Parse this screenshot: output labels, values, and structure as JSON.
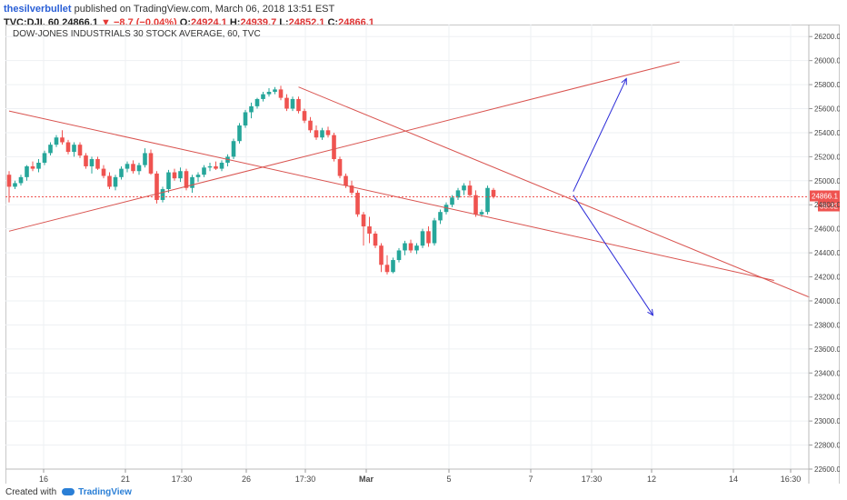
{
  "header": {
    "author": "thesilverbullet",
    "published_text": "published on TradingView.com, March 06, 2018 13:51 EST",
    "symbol": "TVC:DJI, 60",
    "last": "24866.1",
    "change": "−8.7 (−0.04%)",
    "open_label": "O:",
    "open": "24924.1",
    "high_label": "H:",
    "high": "24939.7",
    "low_label": "L:",
    "low": "24852.1",
    "close_label": "C:",
    "close": "24866.1"
  },
  "footer": {
    "created_with": "Created with",
    "brand": "TradingView"
  },
  "colors": {
    "up": "#26a69a",
    "down": "#ef5350",
    "trendline": "#d9534f",
    "arrow": "#2b2bd8",
    "price_label_bg": "#ef5350"
  },
  "chart_data": {
    "type": "candlestick",
    "title": "DOW-JONES INDUSTRIALS 30 STOCK AVERAGE, 60, TVC",
    "x_tick_labels": [
      "16",
      "21",
      "17:30",
      "26",
      "17:30",
      "Mar",
      "5",
      "7",
      "17:30",
      "12",
      "14",
      "16:30"
    ],
    "y_tick_labels": [
      "26200.0",
      "26000.0",
      "25800.0",
      "25600.0",
      "25400.0",
      "25200.0",
      "25000.0",
      "24800.0",
      "24600.0",
      "24400.0",
      "24200.0",
      "24000.0",
      "23800.0",
      "23600.0",
      "23400.0",
      "23200.0",
      "23000.0",
      "22800.0",
      "22600.0"
    ],
    "ylim": [
      22600,
      26300
    ],
    "grid": true,
    "last_price_label": "24866.1",
    "countdown_label": "38:32",
    "candles": [
      {
        "o": 25050,
        "h": 25080,
        "l": 24820,
        "c": 24950
      },
      {
        "o": 24950,
        "h": 25000,
        "l": 24930,
        "c": 24980
      },
      {
        "o": 24980,
        "h": 25050,
        "l": 24960,
        "c": 25030
      },
      {
        "o": 25030,
        "h": 25130,
        "l": 25000,
        "c": 25120
      },
      {
        "o": 25120,
        "h": 25160,
        "l": 25080,
        "c": 25100
      },
      {
        "o": 25100,
        "h": 25180,
        "l": 25070,
        "c": 25150
      },
      {
        "o": 25150,
        "h": 25250,
        "l": 25130,
        "c": 25230
      },
      {
        "o": 25230,
        "h": 25320,
        "l": 25210,
        "c": 25300
      },
      {
        "o": 25300,
        "h": 25380,
        "l": 25280,
        "c": 25360
      },
      {
        "o": 25360,
        "h": 25420,
        "l": 25300,
        "c": 25320
      },
      {
        "o": 25320,
        "h": 25340,
        "l": 25220,
        "c": 25240
      },
      {
        "o": 25240,
        "h": 25320,
        "l": 25200,
        "c": 25300
      },
      {
        "o": 25300,
        "h": 25320,
        "l": 25190,
        "c": 25210
      },
      {
        "o": 25210,
        "h": 25230,
        "l": 25100,
        "c": 25120
      },
      {
        "o": 25120,
        "h": 25200,
        "l": 25060,
        "c": 25180
      },
      {
        "o": 25180,
        "h": 25200,
        "l": 25090,
        "c": 25100
      },
      {
        "o": 25100,
        "h": 25130,
        "l": 25020,
        "c": 25040
      },
      {
        "o": 25040,
        "h": 25070,
        "l": 24930,
        "c": 24950
      },
      {
        "o": 24950,
        "h": 25050,
        "l": 24920,
        "c": 25030
      },
      {
        "o": 25030,
        "h": 25120,
        "l": 25010,
        "c": 25100
      },
      {
        "o": 25100,
        "h": 25160,
        "l": 25070,
        "c": 25140
      },
      {
        "o": 25140,
        "h": 25170,
        "l": 25060,
        "c": 25080
      },
      {
        "o": 25080,
        "h": 25150,
        "l": 25050,
        "c": 25130
      },
      {
        "o": 25130,
        "h": 25270,
        "l": 25110,
        "c": 25230
      },
      {
        "o": 25230,
        "h": 25260,
        "l": 25050,
        "c": 25060
      },
      {
        "o": 25060,
        "h": 25080,
        "l": 24810,
        "c": 24840
      },
      {
        "o": 24840,
        "h": 24950,
        "l": 24820,
        "c": 24930
      },
      {
        "o": 24930,
        "h": 25090,
        "l": 24900,
        "c": 25070
      },
      {
        "o": 25070,
        "h": 25100,
        "l": 25000,
        "c": 25020
      },
      {
        "o": 25020,
        "h": 25110,
        "l": 24990,
        "c": 25080
      },
      {
        "o": 25080,
        "h": 25100,
        "l": 24920,
        "c": 24940
      },
      {
        "o": 24940,
        "h": 25050,
        "l": 24900,
        "c": 25030
      },
      {
        "o": 25030,
        "h": 25070,
        "l": 24990,
        "c": 25050
      },
      {
        "o": 25050,
        "h": 25130,
        "l": 25030,
        "c": 25110
      },
      {
        "o": 25110,
        "h": 25150,
        "l": 25080,
        "c": 25120
      },
      {
        "o": 25120,
        "h": 25160,
        "l": 25090,
        "c": 25100
      },
      {
        "o": 25100,
        "h": 25170,
        "l": 25080,
        "c": 25150
      },
      {
        "o": 25150,
        "h": 25220,
        "l": 25120,
        "c": 25200
      },
      {
        "o": 25200,
        "h": 25350,
        "l": 25180,
        "c": 25330
      },
      {
        "o": 25330,
        "h": 25480,
        "l": 25310,
        "c": 25460
      },
      {
        "o": 25460,
        "h": 25590,
        "l": 25440,
        "c": 25570
      },
      {
        "o": 25570,
        "h": 25650,
        "l": 25520,
        "c": 25620
      },
      {
        "o": 25620,
        "h": 25690,
        "l": 25600,
        "c": 25680
      },
      {
        "o": 25680,
        "h": 25740,
        "l": 25660,
        "c": 25720
      },
      {
        "o": 25720,
        "h": 25770,
        "l": 25700,
        "c": 25740
      },
      {
        "o": 25740,
        "h": 25780,
        "l": 25720,
        "c": 25760
      },
      {
        "o": 25760,
        "h": 25790,
        "l": 25670,
        "c": 25690
      },
      {
        "o": 25690,
        "h": 25720,
        "l": 25580,
        "c": 25600
      },
      {
        "o": 25600,
        "h": 25700,
        "l": 25580,
        "c": 25680
      },
      {
        "o": 25680,
        "h": 25700,
        "l": 25560,
        "c": 25580
      },
      {
        "o": 25580,
        "h": 25600,
        "l": 25480,
        "c": 25500
      },
      {
        "o": 25500,
        "h": 25530,
        "l": 25400,
        "c": 25420
      },
      {
        "o": 25420,
        "h": 25460,
        "l": 25340,
        "c": 25360
      },
      {
        "o": 25360,
        "h": 25440,
        "l": 25340,
        "c": 25420
      },
      {
        "o": 25420,
        "h": 25450,
        "l": 25360,
        "c": 25380
      },
      {
        "o": 25380,
        "h": 25400,
        "l": 25160,
        "c": 25180
      },
      {
        "o": 25180,
        "h": 25200,
        "l": 25020,
        "c": 25040
      },
      {
        "o": 25040,
        "h": 25060,
        "l": 24940,
        "c": 24960
      },
      {
        "o": 24960,
        "h": 25000,
        "l": 24880,
        "c": 24900
      },
      {
        "o": 24900,
        "h": 24920,
        "l": 24700,
        "c": 24720
      },
      {
        "o": 24720,
        "h": 24740,
        "l": 24460,
        "c": 24620
      },
      {
        "o": 24620,
        "h": 24700,
        "l": 24480,
        "c": 24560
      },
      {
        "o": 24560,
        "h": 24580,
        "l": 24440,
        "c": 24460
      },
      {
        "o": 24460,
        "h": 24480,
        "l": 24240,
        "c": 24300
      },
      {
        "o": 24300,
        "h": 24380,
        "l": 24220,
        "c": 24240
      },
      {
        "o": 24240,
        "h": 24360,
        "l": 24230,
        "c": 24340
      },
      {
        "o": 24340,
        "h": 24440,
        "l": 24320,
        "c": 24420
      },
      {
        "o": 24420,
        "h": 24500,
        "l": 24380,
        "c": 24480
      },
      {
        "o": 24480,
        "h": 24510,
        "l": 24400,
        "c": 24420
      },
      {
        "o": 24420,
        "h": 24480,
        "l": 24390,
        "c": 24460
      },
      {
        "o": 24460,
        "h": 24600,
        "l": 24440,
        "c": 24580
      },
      {
        "o": 24580,
        "h": 24620,
        "l": 24450,
        "c": 24480
      },
      {
        "o": 24480,
        "h": 24690,
        "l": 24460,
        "c": 24670
      },
      {
        "o": 24670,
        "h": 24760,
        "l": 24640,
        "c": 24740
      },
      {
        "o": 24740,
        "h": 24820,
        "l": 24720,
        "c": 24800
      },
      {
        "o": 24800,
        "h": 24880,
        "l": 24780,
        "c": 24860
      },
      {
        "o": 24860,
        "h": 24940,
        "l": 24840,
        "c": 24920
      },
      {
        "o": 24920,
        "h": 24980,
        "l": 24880,
        "c": 24960
      },
      {
        "o": 24960,
        "h": 25000,
        "l": 24860,
        "c": 24880
      },
      {
        "o": 24880,
        "h": 24920,
        "l": 24700,
        "c": 24720
      },
      {
        "o": 24720,
        "h": 24760,
        "l": 24700,
        "c": 24740
      },
      {
        "o": 24740,
        "h": 24960,
        "l": 24720,
        "c": 24940
      },
      {
        "o": 24924,
        "h": 24940,
        "l": 24852,
        "c": 24866
      }
    ],
    "trendlines": [
      {
        "x1": 0.0,
        "y1": 25580,
        "x2": 129.5,
        "y2": 24170
      },
      {
        "x1": 0.0,
        "y1": 24580,
        "x2": 113.5,
        "y2": 25990
      },
      {
        "x1": 49.0,
        "y1": 25780,
        "x2": 135.5,
        "y2": 24030
      }
    ],
    "arrows": [
      {
        "x1": 95.5,
        "y1": 24910,
        "x2": 104.5,
        "y2": 25850
      },
      {
        "x1": 95.5,
        "y1": 24880,
        "x2": 109.0,
        "y2": 23880
      }
    ]
  }
}
